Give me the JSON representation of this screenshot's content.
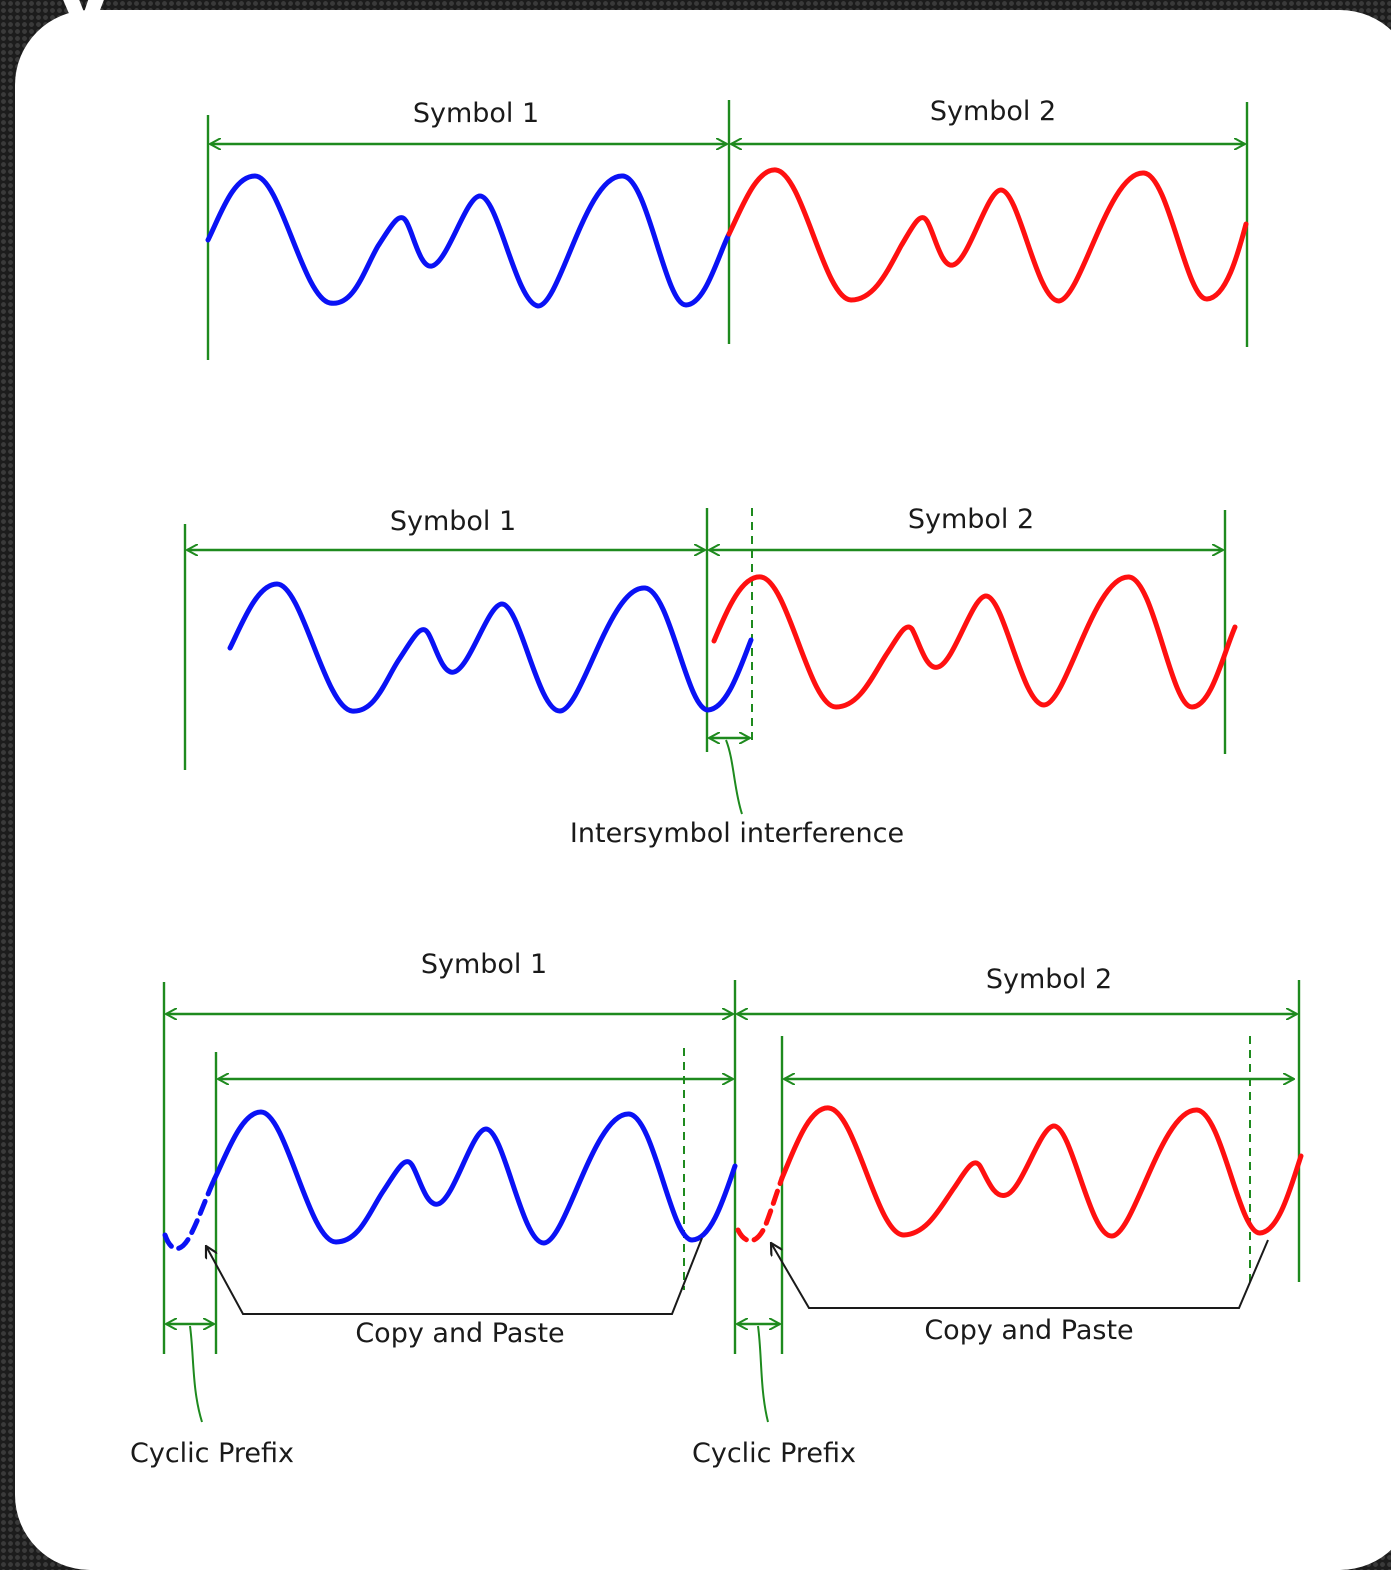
{
  "top_glyph": "y",
  "diagrams": [
    {
      "symbol1": "Symbol 1",
      "symbol2": "Symbol 2"
    },
    {
      "symbol1": "Symbol 1",
      "symbol2": "Symbol 2",
      "annotation": "Intersymbol interference"
    },
    {
      "symbol1": "Symbol 1",
      "symbol2": "Symbol 2",
      "copy_label_1": "Copy and Paste",
      "copy_label_2": "Copy and Paste",
      "prefix_label_1": "Cyclic Prefix",
      "prefix_label_2": "Cyclic Prefix"
    }
  ],
  "colors": {
    "symbol1_wave": "#0a12f5",
    "symbol2_wave": "#ff1010",
    "markers": "#1e8a1e",
    "annotation_lines": "#1a1a1a"
  }
}
